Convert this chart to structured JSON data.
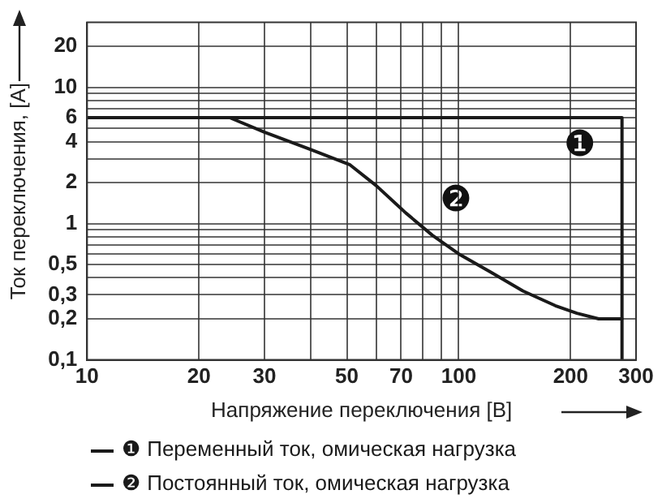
{
  "chart_data": {
    "type": "line",
    "xlabel": "Напряжение переключения [В]",
    "ylabel": "Ток переключения, [A]",
    "log": "xy",
    "grid": true,
    "legend": "bottom",
    "marker": "none",
    "line_style": "solid",
    "xlim": [
      10,
      300
    ],
    "ylim": [
      0.1,
      30
    ],
    "xticks": [
      10,
      20,
      30,
      {
        "value": 40,
        "label": null
      },
      50,
      {
        "value": 60,
        "label": null
      },
      70,
      {
        "value": 80,
        "label": null
      },
      {
        "value": 90,
        "label": null
      },
      100,
      200,
      300
    ],
    "yticks": [
      {
        "value": 0.1,
        "label": "0,1"
      },
      {
        "value": 0.2,
        "label": "0,2"
      },
      {
        "value": 0.3,
        "label": "0,3"
      },
      {
        "value": 0.4,
        "label": null
      },
      {
        "value": 0.5,
        "label": "0,5"
      },
      {
        "value": 0.6,
        "label": null
      },
      {
        "value": 0.7,
        "label": null
      },
      {
        "value": 0.8,
        "label": null
      },
      {
        "value": 0.9,
        "label": null
      },
      1,
      2,
      {
        "value": 3,
        "label": null
      },
      4,
      {
        "value": 5,
        "label": null
      },
      6,
      {
        "value": 7,
        "label": null
      },
      {
        "value": 8,
        "label": null
      },
      {
        "value": 9,
        "label": null
      },
      10,
      20
    ],
    "series": [
      {
        "name": "❶ Переменный ток, омическая нагрузка",
        "color": "#1a1a1a",
        "x": [
          10,
          275,
          275
        ],
        "values": [
          6,
          6,
          0.1
        ]
      },
      {
        "name": "❷ Постоянный ток, омическая нагрузка",
        "color": "#1a1a1a",
        "x": [
          24.2,
          30,
          40,
          51,
          60,
          72,
          85,
          100,
          122,
          149,
          182,
          208,
          238,
          275
        ],
        "values": [
          6,
          4.7,
          3.5,
          2.7,
          1.9,
          1.2,
          0.82,
          0.6,
          0.44,
          0.32,
          0.25,
          0.22,
          0.2,
          0.2
        ]
      }
    ],
    "annotations": [
      {
        "text": "❶",
        "x": 275,
        "y": 3.7
      },
      {
        "text": "❷",
        "x": 72,
        "y": 1.2
      }
    ]
  }
}
